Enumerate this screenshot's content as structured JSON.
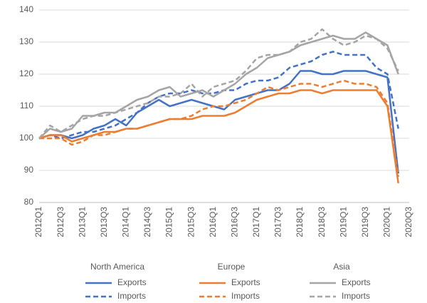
{
  "chart_data": {
    "type": "line",
    "categories": [
      "2012Q1",
      null,
      "2012Q3",
      null,
      "2013Q1",
      null,
      "2013Q3",
      null,
      "2014Q1",
      null,
      "2014Q3",
      null,
      "2015Q1",
      null,
      "2015Q3",
      null,
      "2016Q1",
      null,
      "2016Q3",
      null,
      "2017Q1",
      null,
      "2017Q3",
      null,
      "2018Q1",
      null,
      "2018Q3",
      null,
      "2019Q1",
      null,
      "2019Q3",
      null,
      "2020Q1",
      null,
      "2020Q3"
    ],
    "legend_groups": [
      "North America",
      "Europe",
      "Asia"
    ],
    "series": [
      {
        "name": "Exports",
        "color": "#4472c4",
        "dashed": false,
        "values": [
          100,
          101,
          101,
          100,
          101,
          103,
          104,
          106,
          104,
          108,
          110,
          112,
          110,
          111,
          112,
          111,
          110,
          109,
          112,
          113,
          114,
          115,
          115,
          117,
          121,
          121,
          120,
          120,
          121,
          121,
          121,
          120,
          119,
          89,
          null
        ]
      },
      {
        "name": "Imports",
        "color": "#4472c4",
        "dashed": true,
        "values": [
          100,
          101,
          100,
          101,
          102,
          102,
          103,
          104,
          106,
          108,
          111,
          113,
          114,
          114,
          115,
          114,
          114,
          115,
          115,
          117,
          118,
          118,
          119,
          122,
          123,
          124,
          126,
          127,
          126,
          126,
          126,
          122,
          120,
          103,
          null
        ]
      },
      {
        "name": "Exports",
        "color": "#ed7d31",
        "dashed": false,
        "values": [
          100,
          101,
          101,
          99,
          100,
          101,
          102,
          102,
          103,
          103,
          104,
          105,
          106,
          106,
          106,
          107,
          107,
          107,
          108,
          110,
          112,
          113,
          114,
          114,
          115,
          115,
          114,
          115,
          115,
          115,
          115,
          115,
          110,
          86,
          null
        ]
      },
      {
        "name": "Imports",
        "color": "#ed7d31",
        "dashed": true,
        "values": [
          100,
          100,
          100,
          98,
          99,
          101,
          101,
          102,
          103,
          103,
          104,
          105,
          106,
          106,
          107,
          109,
          110,
          110,
          111,
          112,
          114,
          116,
          115,
          116,
          117,
          117,
          116,
          117,
          118,
          117,
          117,
          116,
          111,
          88,
          null
        ]
      },
      {
        "name": "Exports",
        "color": "#a5a5a5",
        "dashed": false,
        "values": [
          100,
          103,
          102,
          103,
          107,
          107,
          108,
          108,
          110,
          112,
          113,
          115,
          116,
          113,
          114,
          115,
          113,
          115,
          117,
          120,
          122,
          125,
          126,
          127,
          129,
          130,
          131,
          132,
          131,
          131,
          133,
          131,
          129,
          120,
          null
        ]
      },
      {
        "name": "Imports",
        "color": "#a5a5a5",
        "dashed": true,
        "values": [
          100,
          104,
          102,
          104,
          106,
          107,
          107,
          108,
          109,
          110,
          111,
          113,
          113,
          114,
          117,
          113,
          116,
          117,
          118,
          121,
          125,
          126,
          126,
          127,
          130,
          131,
          134,
          131,
          129,
          130,
          132,
          131,
          128,
          121,
          null
        ]
      }
    ],
    "ylim": [
      80,
      140
    ],
    "yticks": [
      80,
      90,
      100,
      110,
      120,
      130,
      140
    ],
    "grid": true
  }
}
